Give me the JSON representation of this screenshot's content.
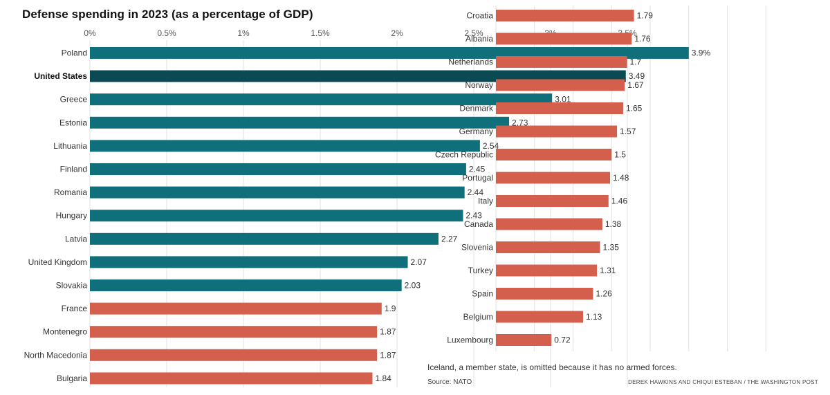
{
  "chart_data": {
    "type": "bar",
    "orientation": "horizontal",
    "title": "Defense spending in 2023 (as a percentage of GDP)",
    "xlim": [
      0,
      4
    ],
    "x_ticks": [
      "0%",
      "0.5%",
      "1%",
      "1.5%",
      "2%",
      "2.5%",
      "3%",
      "3.5%"
    ],
    "x_tick_values": [
      0,
      0.5,
      1,
      1.5,
      2,
      2.5,
      3,
      3.5
    ],
    "highlight_category": "United States",
    "colors": {
      "above_target": "#0f6f7a",
      "highlight": "#0b4a52",
      "below_target": "#d55f4d",
      "grid": "#e2e2e2"
    },
    "panels": [
      {
        "bars": [
          {
            "category": "Poland",
            "value": 3.9,
            "label": "3.9%"
          },
          {
            "category": "United States",
            "value": 3.49,
            "label": "3.49"
          },
          {
            "category": "Greece",
            "value": 3.01,
            "label": "3.01"
          },
          {
            "category": "Estonia",
            "value": 2.73,
            "label": "2.73"
          },
          {
            "category": "Lithuania",
            "value": 2.54,
            "label": "2.54"
          },
          {
            "category": "Finland",
            "value": 2.45,
            "label": "2.45"
          },
          {
            "category": "Romania",
            "value": 2.44,
            "label": "2.44"
          },
          {
            "category": "Hungary",
            "value": 2.43,
            "label": "2.43"
          },
          {
            "category": "Latvia",
            "value": 2.27,
            "label": "2.27"
          },
          {
            "category": "United Kingdom",
            "value": 2.07,
            "label": "2.07"
          },
          {
            "category": "Slovakia",
            "value": 2.03,
            "label": "2.03"
          },
          {
            "category": "France",
            "value": 1.9,
            "label": "1.9"
          },
          {
            "category": "Montenegro",
            "value": 1.87,
            "label": "1.87"
          },
          {
            "category": "North Macedonia",
            "value": 1.87,
            "label": "1.87"
          },
          {
            "category": "Bulgaria",
            "value": 1.84,
            "label": "1.84"
          }
        ]
      },
      {
        "bars": [
          {
            "category": "Croatia",
            "value": 1.79,
            "label": "1.79"
          },
          {
            "category": "Albania",
            "value": 1.76,
            "label": "1.76"
          },
          {
            "category": "Netherlands",
            "value": 1.7,
            "label": "1.7"
          },
          {
            "category": "Norway",
            "value": 1.67,
            "label": "1.67"
          },
          {
            "category": "Denmark",
            "value": 1.65,
            "label": "1.65"
          },
          {
            "category": "Germany",
            "value": 1.57,
            "label": "1.57"
          },
          {
            "category": "Czech Republic",
            "value": 1.5,
            "label": "1.5"
          },
          {
            "category": "Portugal",
            "value": 1.48,
            "label": "1.48"
          },
          {
            "category": "Italy",
            "value": 1.46,
            "label": "1.46"
          },
          {
            "category": "Canada",
            "value": 1.38,
            "label": "1.38"
          },
          {
            "category": "Slovenia",
            "value": 1.35,
            "label": "1.35"
          },
          {
            "category": "Turkey",
            "value": 1.31,
            "label": "1.31"
          },
          {
            "category": "Spain",
            "value": 1.26,
            "label": "1.26"
          },
          {
            "category": "Belgium",
            "value": 1.13,
            "label": "1.13"
          },
          {
            "category": "Luxembourg",
            "value": 0.72,
            "label": "0.72"
          }
        ]
      }
    ],
    "footnote": "Iceland, a member state, is omitted because it has no armed forces.",
    "source": "Source: NATO",
    "credit": "DEREK HAWKINS AND CHIQUI ESTEBAN / THE WASHINGTON POST"
  }
}
